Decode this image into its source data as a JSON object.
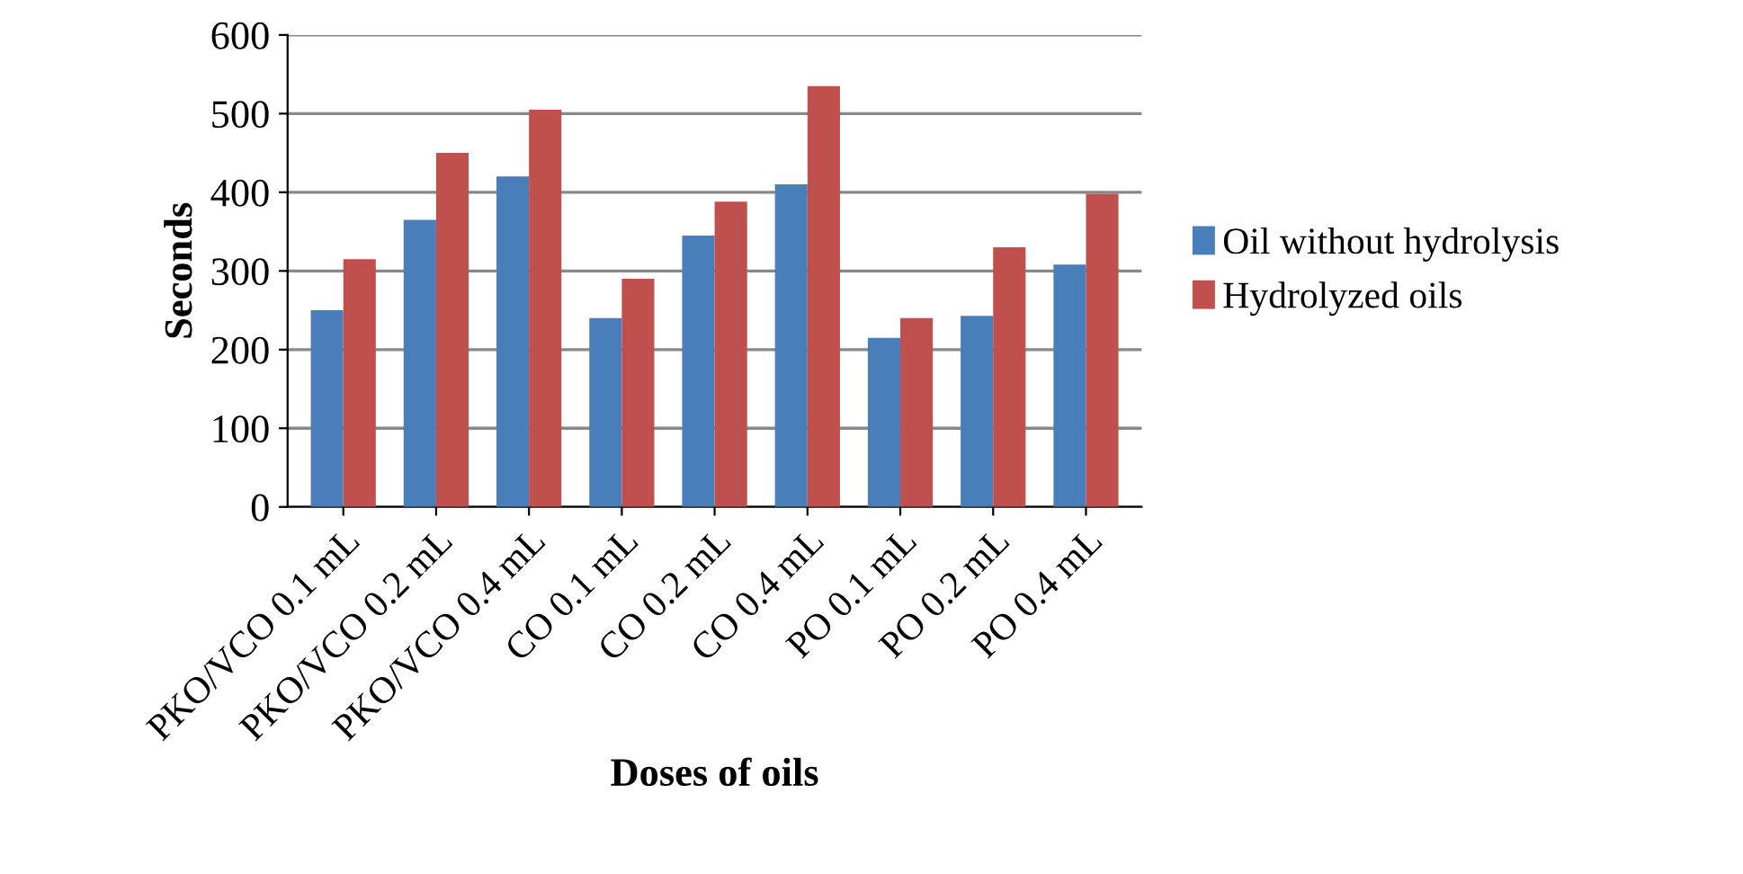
{
  "chart_data": {
    "type": "bar",
    "xlabel": "Doses of oils",
    "ylabel": "Seconds",
    "categories": [
      "PKO/VCO 0.1 mL",
      "PKO/VCO 0.2 mL",
      "PKO/VCO 0.4 mL",
      "CO 0.1 mL",
      "CO 0.2 mL",
      "CO 0.4 mL",
      "PO 0.1 mL",
      "PO 0.2 mL",
      "PO 0.4 mL"
    ],
    "series": [
      {
        "name": "Oil without hydrolysis",
        "color": "#4a7ebb",
        "values": [
          250,
          365,
          420,
          240,
          345,
          410,
          215,
          243,
          308
        ]
      },
      {
        "name": "Hydrolyzed oils",
        "color": "#c0504d",
        "values": [
          315,
          450,
          505,
          290,
          388,
          535,
          240,
          330,
          398
        ]
      }
    ],
    "ylim": [
      0,
      600
    ],
    "yticks": [
      0,
      100,
      200,
      300,
      400,
      500,
      600
    ],
    "grid": "y",
    "legend": "right"
  }
}
